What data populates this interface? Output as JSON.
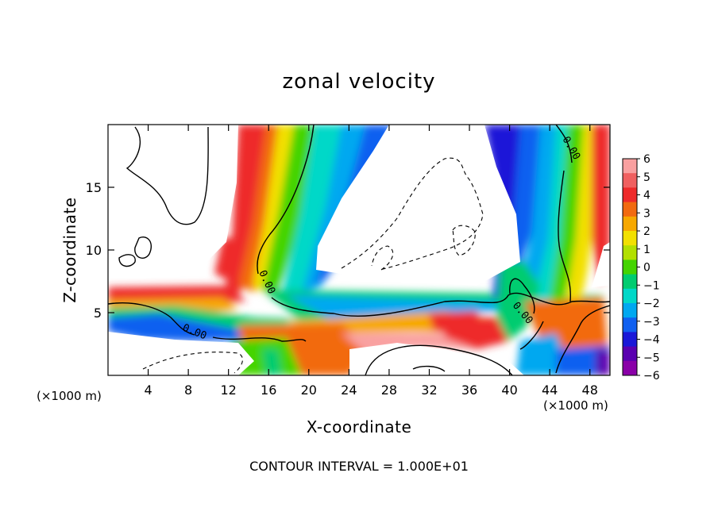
{
  "chart_data": {
    "type": "heatmap",
    "title": "zonal velocity",
    "xlabel": "X-coordinate",
    "ylabel": "Z-coordinate",
    "x_unit_label": "(×1000 m)",
    "x_ticks": [
      4,
      8,
      12,
      16,
      20,
      24,
      28,
      32,
      36,
      40,
      44,
      48
    ],
    "y_ticks": [
      5,
      10,
      15
    ],
    "xlim": [
      0,
      50
    ],
    "ylim": [
      0,
      20
    ],
    "colorbar": {
      "ticks": [
        6,
        5,
        4,
        3,
        2,
        1,
        0,
        -1,
        -2,
        -3,
        -4,
        -5,
        -6
      ],
      "range": [
        -6,
        6
      ],
      "colors": [
        "#f9a0a0",
        "#f06060",
        "#ee2a2a",
        "#f26a10",
        "#f7a800",
        "#f2e000",
        "#b2e000",
        "#44d400",
        "#00cc70",
        "#00d8c8",
        "#00a8f0",
        "#1060f0",
        "#1a18d8",
        "#5a00b0",
        "#8a00a8"
      ]
    },
    "contour_labels": [
      "0.00",
      "0.00",
      "0.00",
      "0.00"
    ],
    "footer": "CONTOUR INTERVAL = 1.000E+01"
  }
}
